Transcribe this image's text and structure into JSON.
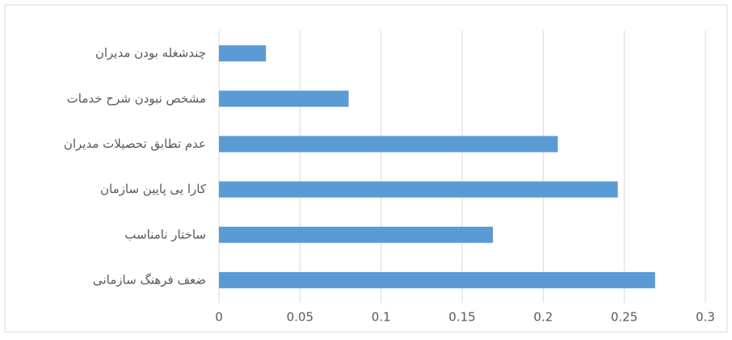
{
  "chart_data": {
    "type": "bar",
    "orientation": "horizontal",
    "categories": [
      "چندشغله بودن مدیران",
      "مشخص نبودن شرح خدمات",
      "عدم تطابق تحصیلات مدیران",
      "کارا یی پایین سازمان",
      "ساختار نامناسب",
      "ضعف فرهنگ سازمانی"
    ],
    "values": [
      0.029,
      0.08,
      0.209,
      0.246,
      0.169,
      0.269
    ],
    "color": "#5b9bd5",
    "xlim": [
      0,
      0.3
    ],
    "xticks": [
      0,
      0.05,
      0.1,
      0.15,
      0.2,
      0.25,
      0.3
    ],
    "grid": true
  }
}
